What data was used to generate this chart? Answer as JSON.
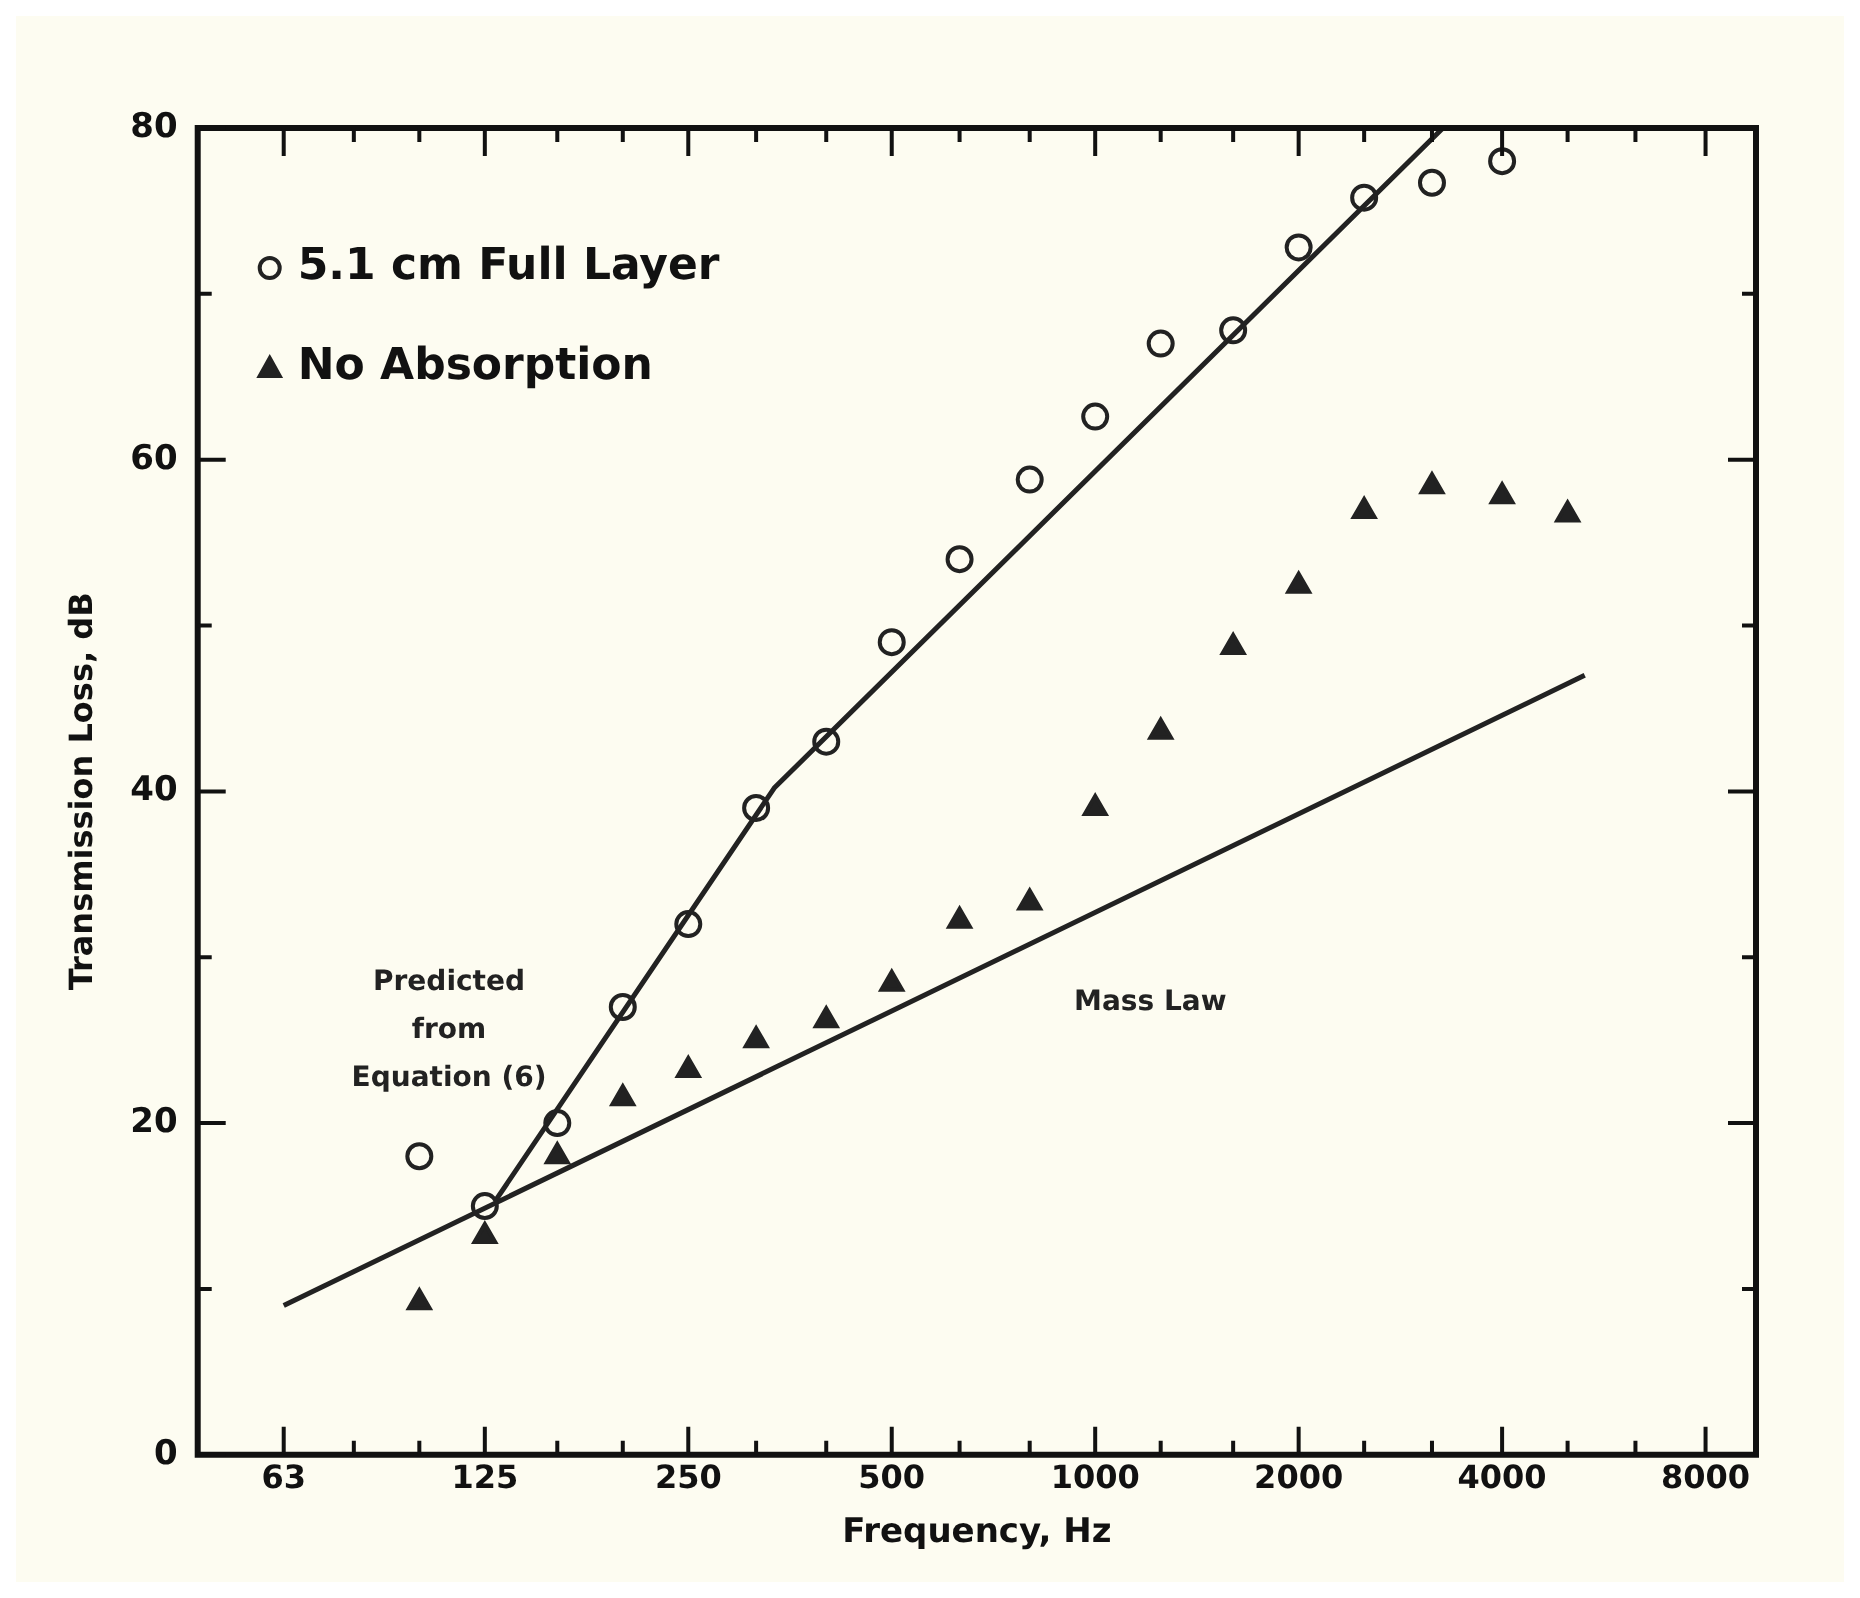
{
  "chart_data": {
    "type": "scatter",
    "xlabel": "Frequency, Hz",
    "ylabel": "Transmission Loss, dB",
    "log": "x",
    "legend": "top left",
    "grid": false,
    "xlim": [
      47,
      9500
    ],
    "ylim": [
      0,
      80
    ],
    "xticks": [
      63,
      {
        "value": 80,
        "label": null
      },
      {
        "value": 100,
        "label": null
      },
      125,
      {
        "value": 160,
        "label": null
      },
      {
        "value": 200,
        "label": null
      },
      250,
      {
        "value": 315,
        "label": null
      },
      {
        "value": 400,
        "label": null
      },
      500,
      {
        "value": 630,
        "label": null
      },
      {
        "value": 800,
        "label": null
      },
      1000,
      {
        "value": 1250,
        "label": null
      },
      {
        "value": 1600,
        "label": null
      },
      2000,
      {
        "value": 2500,
        "label": null
      },
      {
        "value": 3150,
        "label": null
      },
      4000,
      {
        "value": 5000,
        "label": null
      },
      {
        "value": 6300,
        "label": null
      },
      8000
    ],
    "yticks": [
      0,
      {
        "value": 10,
        "label": null
      },
      20,
      {
        "value": 30,
        "label": null
      },
      40,
      {
        "value": 50,
        "label": null
      },
      60,
      {
        "value": 70,
        "label": null
      },
      80
    ],
    "series": [
      {
        "name": "5.1 cm Full Layer",
        "type": "scatter",
        "marker": "circle",
        "color": "#222222",
        "x": [
          100,
          125,
          160,
          200,
          250,
          315,
          400,
          500,
          630,
          800,
          1000,
          1250,
          1600,
          2000,
          2500,
          3150,
          4000
        ],
        "values": [
          18,
          15,
          20,
          27,
          32,
          39,
          43,
          49,
          54,
          58.8,
          62.6,
          67,
          67.8,
          72.8,
          75.8,
          76.7,
          78
        ]
      },
      {
        "name": "No Absorption",
        "type": "scatter",
        "marker": "triangle",
        "color": "#222222",
        "x": [
          100,
          125,
          160,
          200,
          250,
          315,
          400,
          500,
          630,
          800,
          1000,
          1250,
          1600,
          2000,
          2500,
          3150,
          4000,
          5000
        ],
        "values": [
          9.2,
          13.2,
          18,
          21.5,
          23.2,
          25,
          26.2,
          28.4,
          32.2,
          33.3,
          39,
          43.6,
          48.7,
          52.4,
          56.9,
          58.4,
          57.8,
          56.7
        ]
      },
      {
        "name": "Predicted from Equation (6)",
        "type": "line",
        "marker": "none",
        "line_style": "solid",
        "color": "#222222",
        "x": [
          130,
          335,
          3270
        ],
        "values": [
          15.4,
          40.2,
          80
        ]
      },
      {
        "name": "Mass Law",
        "type": "line",
        "marker": "none",
        "line_style": "solid",
        "color": "#222222",
        "x": [
          63,
          5300
        ],
        "values": [
          9,
          47
        ]
      }
    ]
  }
}
